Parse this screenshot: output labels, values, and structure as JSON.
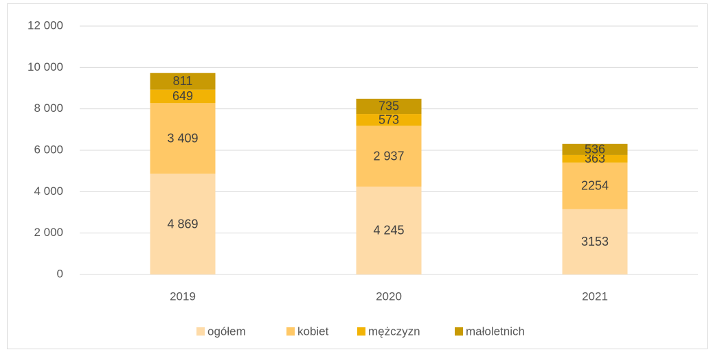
{
  "chart_data": {
    "type": "stacked_bar",
    "categories": [
      "2019",
      "2020",
      "2021"
    ],
    "series": [
      {
        "name": "ogółem",
        "color": "#fedba8",
        "values": [
          4869,
          4245,
          3153
        ],
        "value_labels": [
          "4 869",
          "4 245",
          "3153"
        ]
      },
      {
        "name": "kobiet",
        "color": "#ffc866",
        "values": [
          3409,
          2937,
          2254
        ],
        "value_labels": [
          "3 409",
          "2 937",
          "2254"
        ]
      },
      {
        "name": "mężczyzn",
        "color": "#f2b305",
        "values": [
          649,
          573,
          363
        ],
        "value_labels": [
          "649",
          "573",
          "363"
        ]
      },
      {
        "name": "małoletnich",
        "color": "#c89a04",
        "values": [
          811,
          735,
          536
        ],
        "value_labels": [
          "811",
          "735",
          "536"
        ]
      }
    ],
    "ylim": [
      0,
      12000
    ],
    "yticks": [
      0,
      {
        "value": 2000,
        "label": "2 000"
      },
      {
        "value": 4000,
        "label": "4 000"
      },
      {
        "value": 6000,
        "label": "6 000"
      },
      {
        "value": 8000,
        "label": "8 000"
      },
      {
        "value": 10000,
        "label": "10 000"
      },
      {
        "value": 12000,
        "label": "12 000"
      }
    ],
    "grid": true,
    "legend": "bottom"
  }
}
